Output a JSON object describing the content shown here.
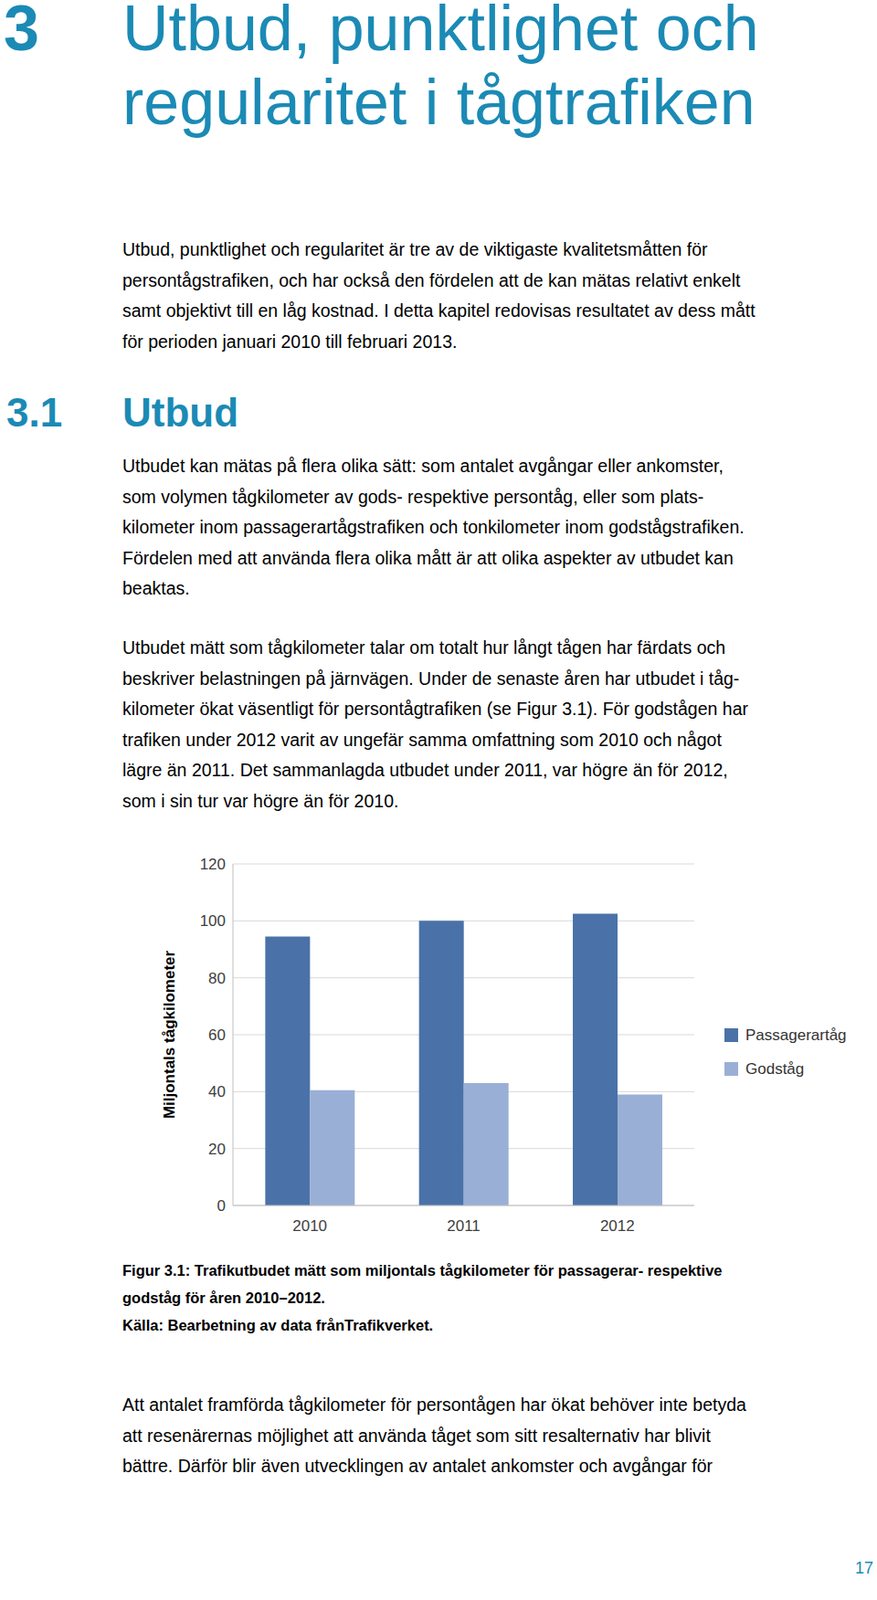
{
  "heading": {
    "number": "3",
    "title_lines": [
      "Utbud, punktlighet och",
      "regularitet i tågtrafiken"
    ]
  },
  "intro": [
    "Utbud, punktlighet och regularitet är tre av de viktigaste kvalitetsmåtten för",
    "persontågstrafiken, och har också den fördelen att de kan mätas relativt enkelt",
    "samt objektivt till en låg kostnad. I detta kapitel redovisas resultatet av dess mått",
    "för perioden januari 2010 till februari 2013."
  ],
  "section": {
    "number": "3.1",
    "title": "Utbud"
  },
  "paragraphs": [
    [
      "Utbudet kan mätas på flera olika sätt: som antalet avgångar eller ankomster,",
      "som volymen tågkilometer av gods- respektive persontåg, eller som plats-",
      "kilometer inom passagerartågstrafiken och tonkilometer inom godstågstrafiken.",
      "Fördelen med att använda flera olika mått är att olika aspekter av utbudet kan",
      "beaktas."
    ],
    [
      "Utbudet mätt som tågkilometer talar om totalt hur långt tågen har färdats och",
      "beskriver belastningen på järnvägen. Under de senaste åren har utbudet i tåg-",
      "kilometer ökat väsentligt för persontågtrafiken (se Figur 3.1). För godstågen har",
      "trafiken under 2012 varit av ungefär samma omfattning som 2010 och något",
      "lägre än 2011. Det sammanlagda utbudet under 2011, var högre än för 2012,",
      "som i sin tur var högre än för 2010."
    ]
  ],
  "chart_data": {
    "type": "bar",
    "categories": [
      "2010",
      "2011",
      "2012"
    ],
    "series": [
      {
        "name": "Passagerartåg",
        "color": "#4a72a8",
        "values": [
          94.5,
          100,
          102.5
        ]
      },
      {
        "name": "Godståg",
        "color": "#9aafd5",
        "values": [
          40.5,
          43,
          39
        ]
      }
    ],
    "y_label": "Miljontals tågkilometer",
    "ylim": [
      0,
      120
    ],
    "yticks": [
      0,
      20,
      40,
      60,
      80,
      100,
      120
    ],
    "grid": true,
    "legend": "right"
  },
  "caption": [
    "Figur 3.1: Trafikutbudet mätt som miljontals tågkilometer för passagerar- respektive",
    "godståg för åren 2010–2012.",
    "Källa: Bearbetning av data frånTrafikverket."
  ],
  "closing_paragraph": [
    "Att antalet framförda tågkilometer för persontågen har ökat behöver inte betyda",
    "att resenärernas möjlighet att använda tåget som sitt resalternativ har blivit",
    "bättre. Därför blir även utvecklingen av antalet ankomster och avgångar för"
  ],
  "page_number": "17"
}
